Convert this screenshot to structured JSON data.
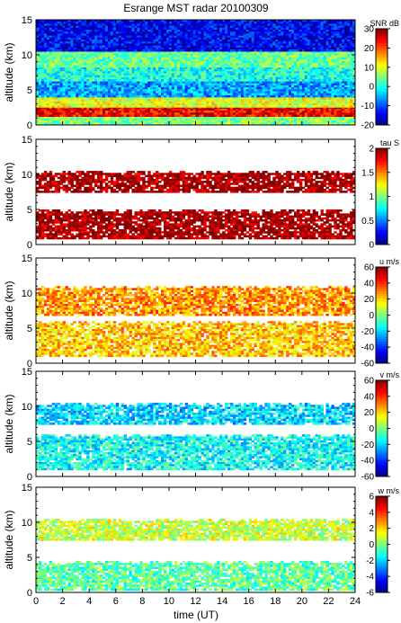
{
  "chart_data": {
    "type": "heatmap",
    "title": "Esrange MST radar 20100309",
    "xlabel": "time (UT)",
    "x_ticks": [
      0,
      2,
      4,
      6,
      8,
      10,
      12,
      14,
      16,
      18,
      20,
      22,
      24
    ],
    "xlim": [
      0,
      24
    ],
    "panels": [
      {
        "name": "snr",
        "ylabel": "altitude (km)",
        "ylim": [
          0,
          15
        ],
        "y_ticks": [
          0,
          5,
          10,
          15
        ],
        "colorbar": {
          "label": "SNR dB",
          "range": [
            -20,
            30
          ],
          "ticks": [
            -20,
            -10,
            0,
            10,
            20,
            30
          ]
        },
        "layers": [
          {
            "alt": [
              0.3,
              1.2
            ],
            "value": 5
          },
          {
            "alt": [
              1.2,
              2.6
            ],
            "value": 24
          },
          {
            "alt": [
              2.6,
              4.2
            ],
            "value": 10
          },
          {
            "alt": [
              4.2,
              6.5
            ],
            "value": -6
          },
          {
            "alt": [
              6.5,
              8.5
            ],
            "value": 0
          },
          {
            "alt": [
              8.5,
              10.5
            ],
            "value": 4
          },
          {
            "alt": [
              10.5,
              15
            ],
            "value": -14
          }
        ]
      },
      {
        "name": "tau",
        "ylabel": "altitude (km)",
        "ylim": [
          0,
          15
        ],
        "y_ticks": [
          0,
          5,
          10,
          15
        ],
        "colorbar": {
          "label": "tau S",
          "range": [
            0,
            2
          ],
          "ticks": [
            0,
            0.5,
            1,
            1.5,
            2
          ]
        },
        "layers": [
          {
            "alt": [
              1.0,
              5.0
            ],
            "value": 1.95
          },
          {
            "alt": [
              7.5,
              10.5
            ],
            "value": 1.95
          }
        ]
      },
      {
        "name": "u",
        "ylabel": "altitude (km)",
        "ylim": [
          0,
          15
        ],
        "y_ticks": [
          0,
          5,
          10,
          15
        ],
        "colorbar": {
          "label": "u m/s",
          "range": [
            -60,
            60
          ],
          "ticks": [
            -60,
            -40,
            -20,
            0,
            20,
            40,
            60
          ]
        },
        "layers": [
          {
            "alt": [
              1.0,
              6.0
            ],
            "value": 22
          },
          {
            "alt": [
              7.0,
              11.0
            ],
            "value": 28
          }
        ]
      },
      {
        "name": "v",
        "ylabel": "altitude (km)",
        "ylim": [
          0,
          15
        ],
        "y_ticks": [
          0,
          5,
          10,
          15
        ],
        "colorbar": {
          "label": "v m/s",
          "range": [
            -60,
            60
          ],
          "ticks": [
            -60,
            -40,
            -20,
            0,
            20,
            40,
            60
          ]
        },
        "layers": [
          {
            "alt": [
              1.0,
              6.0
            ],
            "value": -14
          },
          {
            "alt": [
              7.5,
              10.5
            ],
            "value": -20
          }
        ]
      },
      {
        "name": "w",
        "ylabel": "altitude (km)",
        "ylim": [
          0,
          15
        ],
        "y_ticks": [
          0,
          5,
          10,
          15
        ],
        "colorbar": {
          "label": "w m/s",
          "range": [
            -6,
            6
          ],
          "ticks": [
            -6,
            -4,
            -2,
            0,
            2,
            4,
            6
          ]
        },
        "layers": [
          {
            "alt": [
              0.5,
              4.5
            ],
            "value": -0.4
          },
          {
            "alt": [
              7.5,
              10.5
            ],
            "value": 0.9
          }
        ]
      }
    ]
  }
}
